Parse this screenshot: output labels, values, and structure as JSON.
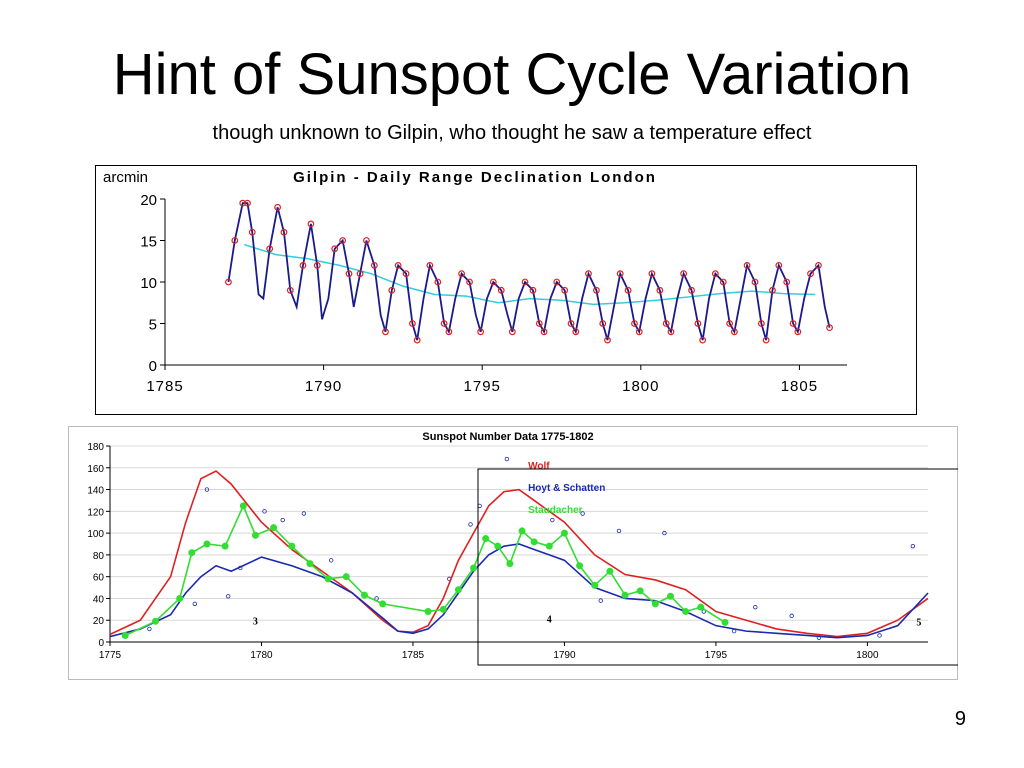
{
  "slide": {
    "title": "Hint of Sunspot Cycle Variation",
    "subtitle": "though unknown to Gilpin, who thought he saw a temperature effect",
    "page_number": "9"
  },
  "chart_data": [
    {
      "type": "line",
      "title": "Gilpin - Daily Range Declination London",
      "ylabel": "arcmin",
      "xlabel": "",
      "xlim": [
        1785,
        1806.5
      ],
      "ylim": [
        0,
        20
      ],
      "xticks": [
        1785,
        1790,
        1795,
        1800,
        1805
      ],
      "yticks": [
        0,
        5,
        10,
        15,
        20
      ],
      "colors": {
        "monthly": "#1a1a8c",
        "marker": "#e02020",
        "smooth": "#33ccdd"
      },
      "series": [
        {
          "kind": "monthly",
          "x": [
            1787.0,
            1787.2,
            1787.45,
            1787.6,
            1787.75,
            1787.95,
            1788.1,
            1788.3,
            1788.55,
            1788.75,
            1788.95,
            1789.15,
            1789.35,
            1789.6,
            1789.8,
            1789.95,
            1790.15,
            1790.35,
            1790.6,
            1790.8,
            1790.95,
            1791.15,
            1791.35,
            1791.6,
            1791.8,
            1791.95,
            1792.15,
            1792.35,
            1792.6,
            1792.8,
            1792.95,
            1793.15,
            1793.35,
            1793.6,
            1793.8,
            1793.95,
            1794.15,
            1794.35,
            1794.6,
            1794.8,
            1794.95,
            1795.15,
            1795.35,
            1795.6,
            1795.8,
            1795.95,
            1796.15,
            1796.35,
            1796.6,
            1796.8,
            1796.95,
            1797.15,
            1797.35,
            1797.6,
            1797.8,
            1797.95,
            1798.15,
            1798.35,
            1798.6,
            1798.8,
            1798.95,
            1799.15,
            1799.35,
            1799.6,
            1799.8,
            1799.95,
            1800.15,
            1800.35,
            1800.6,
            1800.8,
            1800.95,
            1801.15,
            1801.35,
            1801.6,
            1801.8,
            1801.95,
            1802.15,
            1802.35,
            1802.6,
            1802.8,
            1802.95,
            1803.15,
            1803.35,
            1803.6,
            1803.8,
            1803.95,
            1804.15,
            1804.35,
            1804.6,
            1804.8,
            1804.95,
            1805.15,
            1805.35,
            1805.6,
            1805.8,
            1805.95
          ],
          "y": [
            10,
            15,
            19.5,
            19.5,
            16,
            8.5,
            8,
            14,
            19,
            16,
            9,
            7,
            12,
            17,
            12,
            5.5,
            8,
            14,
            15,
            11,
            7,
            11,
            15,
            12,
            6,
            4,
            9,
            12,
            11,
            5,
            3,
            8,
            12,
            10,
            5,
            4,
            8,
            11,
            10,
            6,
            4,
            8,
            10,
            9,
            6,
            4,
            8,
            10,
            9,
            5,
            4,
            8,
            10,
            9,
            5,
            4,
            8,
            11,
            9,
            5,
            3,
            7,
            11,
            9,
            5,
            4,
            8,
            11,
            9,
            5,
            4,
            8,
            11,
            9,
            5,
            3,
            8,
            11,
            10,
            5,
            4,
            8,
            12,
            10,
            5,
            3,
            9,
            12,
            10,
            5,
            4,
            8,
            11,
            12,
            7,
            4.5
          ]
        },
        {
          "kind": "smooth",
          "x": [
            1787.5,
            1788.5,
            1789.5,
            1790.5,
            1791.5,
            1792.5,
            1793.5,
            1794.5,
            1795.5,
            1796.5,
            1797.5,
            1798.5,
            1799.5,
            1800.5,
            1801.5,
            1802.5,
            1803.5,
            1804.5,
            1805.5
          ],
          "y": [
            14.5,
            13.3,
            12.8,
            12.0,
            11.0,
            9.5,
            8.5,
            8.3,
            7.5,
            8.0,
            7.8,
            7.3,
            7.5,
            7.8,
            8.2,
            8.6,
            8.9,
            8.6,
            8.5
          ]
        }
      ]
    },
    {
      "type": "line",
      "title": "Sunspot Number Data 1775-1802",
      "xlabel": "",
      "ylabel": "",
      "xlim": [
        1775,
        1802
      ],
      "ylim": [
        0,
        180
      ],
      "xticks": [
        1775,
        1780,
        1785,
        1790,
        1795,
        1800
      ],
      "yticks": [
        0,
        20,
        40,
        60,
        80,
        100,
        120,
        140,
        160,
        180
      ],
      "legend_position": "top-right",
      "cycle_labels": [
        {
          "text": "3",
          "x": 1779.8,
          "y": 16
        },
        {
          "text": "4",
          "x": 1789.5,
          "y": 18
        },
        {
          "text": "5",
          "x": 1801.7,
          "y": 15
        }
      ],
      "series": [
        {
          "name": "Wolf",
          "color": "#e02020",
          "x": [
            1775,
            1776,
            1777,
            1777.5,
            1778,
            1778.5,
            1779,
            1780,
            1781,
            1782,
            1783,
            1784,
            1784.5,
            1785,
            1785.5,
            1786,
            1786.5,
            1787,
            1787.5,
            1788,
            1788.5,
            1789,
            1789.5,
            1790,
            1791,
            1792,
            1793,
            1794,
            1795,
            1796,
            1797,
            1798,
            1799,
            1800,
            1801,
            1802
          ],
          "y": [
            7,
            20,
            60,
            110,
            150,
            157,
            145,
            110,
            85,
            65,
            45,
            20,
            10,
            9,
            15,
            40,
            75,
            100,
            125,
            138,
            140,
            130,
            120,
            110,
            80,
            62,
            57,
            48,
            28,
            20,
            12,
            8,
            5,
            8,
            20,
            40
          ]
        },
        {
          "name": "Hoyt & Schatten",
          "color": "#1a2ab0",
          "x": [
            1775,
            1776,
            1777,
            1777.5,
            1778,
            1778.5,
            1779,
            1780,
            1781,
            1782,
            1783,
            1784,
            1784.5,
            1785,
            1785.5,
            1786,
            1786.5,
            1787,
            1787.5,
            1788,
            1788.5,
            1789,
            1789.5,
            1790,
            1791,
            1792,
            1793,
            1794,
            1795,
            1796,
            1797,
            1798,
            1799,
            1800,
            1801,
            1802
          ],
          "y": [
            5,
            12,
            25,
            45,
            60,
            70,
            65,
            78,
            70,
            60,
            45,
            22,
            10,
            8,
            12,
            25,
            45,
            65,
            80,
            88,
            90,
            85,
            80,
            75,
            50,
            40,
            38,
            28,
            15,
            10,
            8,
            6,
            4,
            6,
            15,
            45
          ]
        },
        {
          "name": "Staudacher",
          "color": "#33dd33",
          "x": [
            1775.5,
            1776.5,
            1777.3,
            1777.7,
            1778.2,
            1778.8,
            1779.4,
            1779.8,
            1780.4,
            1781,
            1781.6,
            1782.2,
            1782.8,
            1783.4,
            1784,
            1785.5,
            1786,
            1786.5,
            1787,
            1787.4,
            1787.8,
            1788.2,
            1788.6,
            1789,
            1789.5,
            1790,
            1790.5,
            1791,
            1791.5,
            1792,
            1792.5,
            1793,
            1793.5,
            1794,
            1794.5,
            1795.3
          ],
          "y": [
            6,
            19,
            40,
            82,
            90,
            88,
            125,
            98,
            105,
            88,
            72,
            58,
            60,
            43,
            35,
            28,
            30,
            48,
            68,
            95,
            88,
            72,
            102,
            92,
            88,
            100,
            70,
            52,
            65,
            43,
            47,
            35,
            42,
            28,
            32,
            18
          ]
        }
      ],
      "scatter_points": {
        "color": "#1a2ab0",
        "x": [
          1776.3,
          1777.8,
          1778.2,
          1778.9,
          1779.3,
          1780.1,
          1780.7,
          1781.4,
          1782.3,
          1783.8,
          1786.2,
          1786.9,
          1787.2,
          1788.1,
          1789.6,
          1790.6,
          1791.2,
          1791.8,
          1793.3,
          1794.6,
          1795.6,
          1796.3,
          1797.5,
          1798.4,
          1800.4,
          1801.5
        ],
        "y": [
          12,
          35,
          140,
          42,
          68,
          120,
          112,
          118,
          75,
          40,
          58,
          108,
          125,
          168,
          112,
          118,
          38,
          102,
          100,
          28,
          10,
          32,
          24,
          4,
          6,
          88
        ]
      }
    }
  ]
}
